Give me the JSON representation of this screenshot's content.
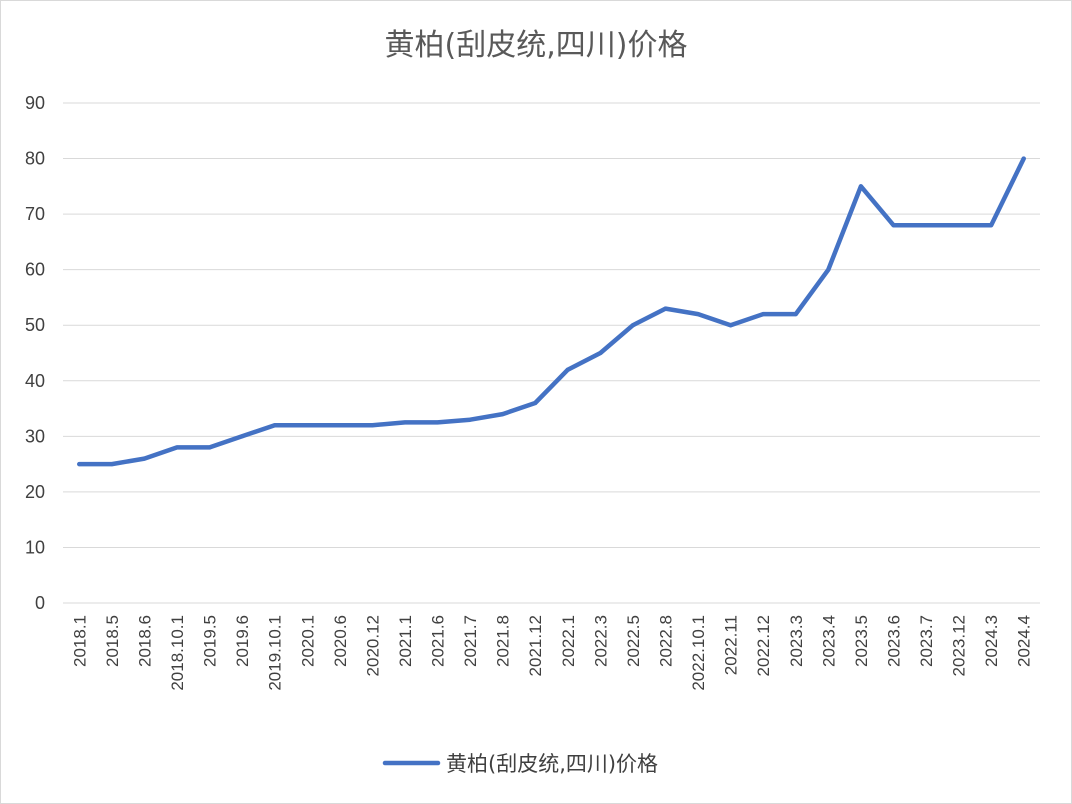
{
  "chart_data": {
    "type": "line",
    "title": "黄柏(刮皮统,四川)价格",
    "xlabel": "",
    "ylabel": "",
    "ylim": [
      0,
      90
    ],
    "yticks": [
      0,
      10,
      20,
      30,
      40,
      50,
      60,
      70,
      80,
      90
    ],
    "grid": true,
    "legend_position": "bottom",
    "categories": [
      "2018.1",
      "2018.5",
      "2018.6",
      "2018.10.1",
      "2019.5",
      "2019.6",
      "2019.10.1",
      "2020.1",
      "2020.6",
      "2020.12",
      "2021.1",
      "2021.6",
      "2021.7",
      "2021.8",
      "2021.12",
      "2022.1",
      "2022.3",
      "2022.5",
      "2022.8",
      "2022.10.1",
      "2022.11",
      "2022.12",
      "2023.3",
      "2023.4",
      "2023.5",
      "2023.6",
      "2023.7",
      "2023.12",
      "2024.3",
      "2024.4"
    ],
    "series": [
      {
        "name": "黄柏(刮皮统,四川)价格",
        "color": "#4472c4",
        "values": [
          25,
          25,
          26,
          28,
          28,
          30,
          32,
          32,
          32,
          32,
          32.5,
          32.5,
          33,
          34,
          36,
          42,
          45,
          50,
          53,
          52,
          50,
          52,
          52,
          60,
          75,
          68,
          68,
          68,
          68,
          80
        ]
      }
    ]
  }
}
